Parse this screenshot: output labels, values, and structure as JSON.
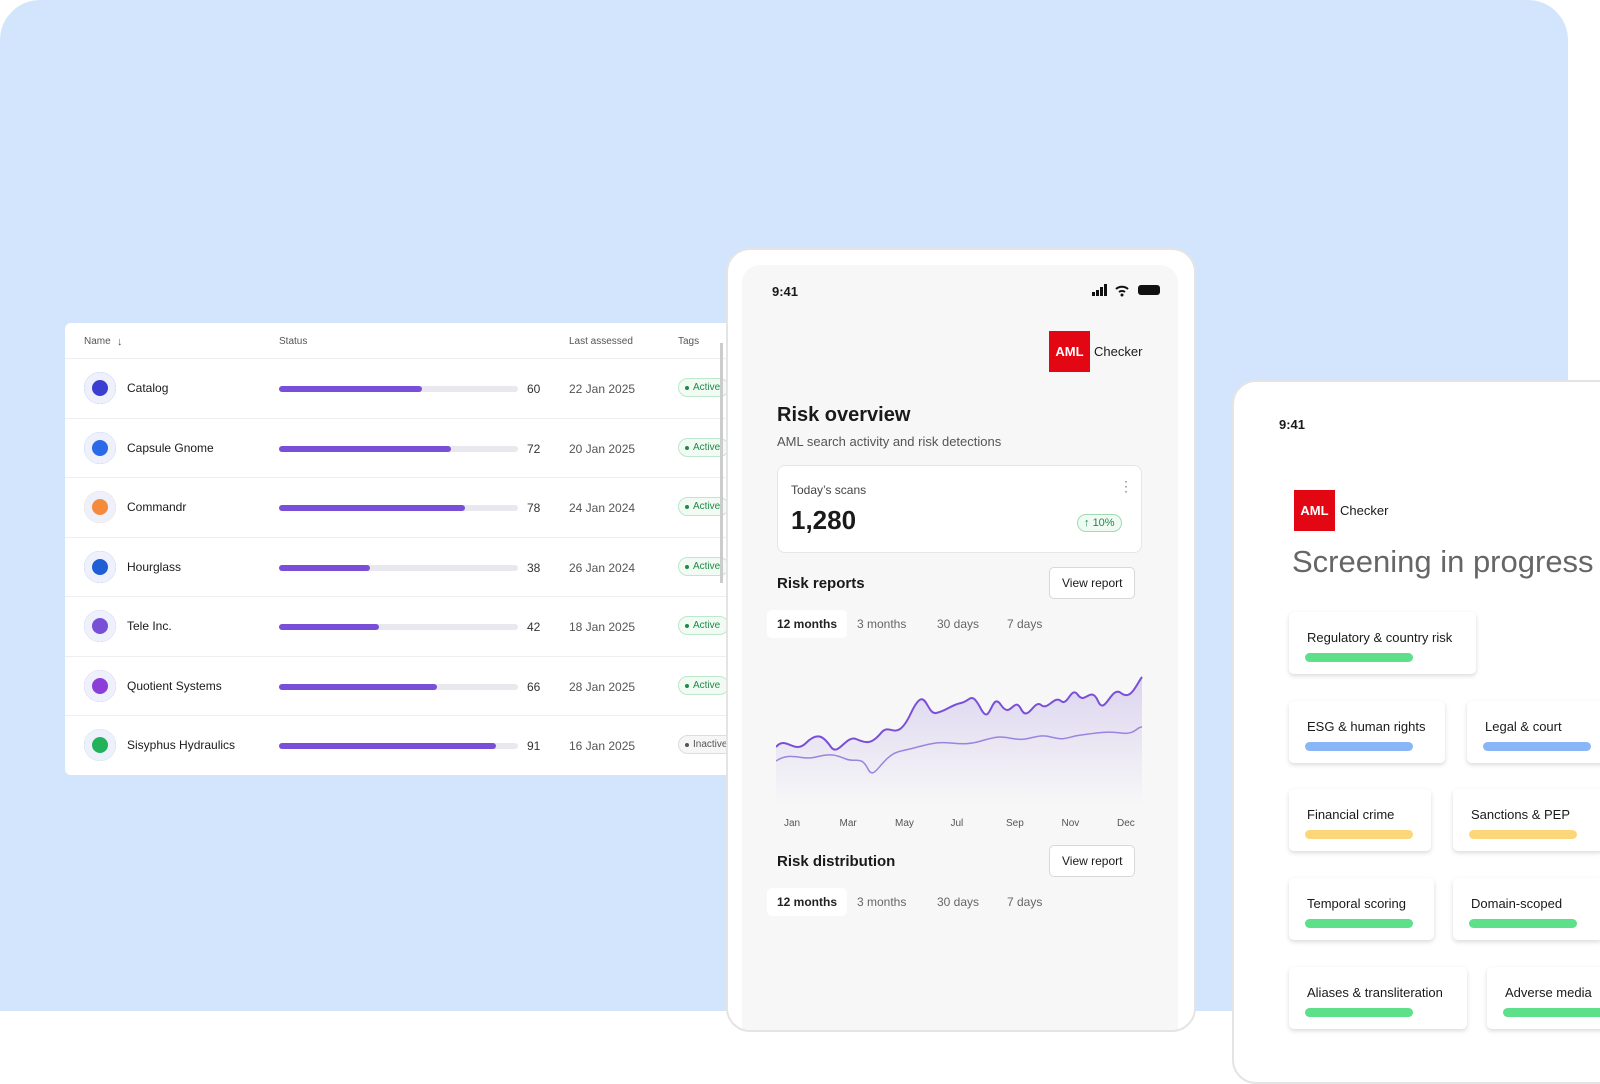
{
  "table": {
    "headers": [
      "Name",
      "Status",
      "Last assessed",
      "Tags"
    ],
    "rows": [
      {
        "name": "Catalog",
        "score": 60,
        "date": "22 Jan 2025",
        "tag": "Active"
      },
      {
        "name": "Capsule Gnome",
        "score": 72,
        "date": "20 Jan 2025",
        "tag": "Active"
      },
      {
        "name": "Commandr",
        "score": 78,
        "date": "24 Jan 2024",
        "tag": "Active"
      },
      {
        "name": "Hourglass",
        "score": 38,
        "date": "26 Jan 2024",
        "tag": "Active"
      },
      {
        "name": "Tele Inc.",
        "score": 42,
        "date": "18 Jan 2025",
        "tag": "Active"
      },
      {
        "name": "Quotient Systems",
        "score": 66,
        "date": "28 Jan 2025",
        "tag": "Active"
      },
      {
        "name": "Sisyphus Hydraulics",
        "score": 91,
        "date": "16 Jan 2025",
        "tag": "Inactive"
      }
    ]
  },
  "overview": {
    "time": "9:41",
    "brand_logo": "AML",
    "brand_name": "Checker",
    "title": "Risk overview",
    "subtitle": "AML search activity and risk detections",
    "scans_label": "Today’s scans",
    "scans_value": "1,280",
    "scans_change": "10%",
    "reports_title": "Risk reports",
    "reports_button": "View report",
    "periods": [
      "12 months",
      "3 months",
      "30 days",
      "7 days"
    ],
    "months": [
      "Jan",
      "Mar",
      "May",
      "Jul",
      "Sep",
      "Nov",
      "Dec"
    ],
    "distribution_title": "Risk distribution",
    "distribution_button": "View report",
    "periods_2": [
      "12 months",
      "3 months",
      "30 days",
      "7 days"
    ]
  },
  "screening": {
    "time": "9:41",
    "brand_logo": "AML",
    "brand_name": "Checker",
    "title": "Screening in progress",
    "cards": [
      {
        "label": "Regulatory & country risk",
        "color": "#5ee08a"
      },
      {
        "label": "ESG & human rights",
        "color": "#89b6f5"
      },
      {
        "label": "Legal & court",
        "color": "#89b6f5"
      },
      {
        "label": "Financial crime",
        "color": "#fbd77a"
      },
      {
        "label": "Sanctions & PEP",
        "color": "#fbd77a"
      },
      {
        "label": "Temporal scoring",
        "color": "#5ee08a"
      },
      {
        "label": "Domain-scoped",
        "color": "#5ee08a"
      },
      {
        "label": "Aliases & transliteration",
        "color": "#5ee08a"
      },
      {
        "label": "Adverse media",
        "color": "#5ee08a"
      }
    ]
  }
}
